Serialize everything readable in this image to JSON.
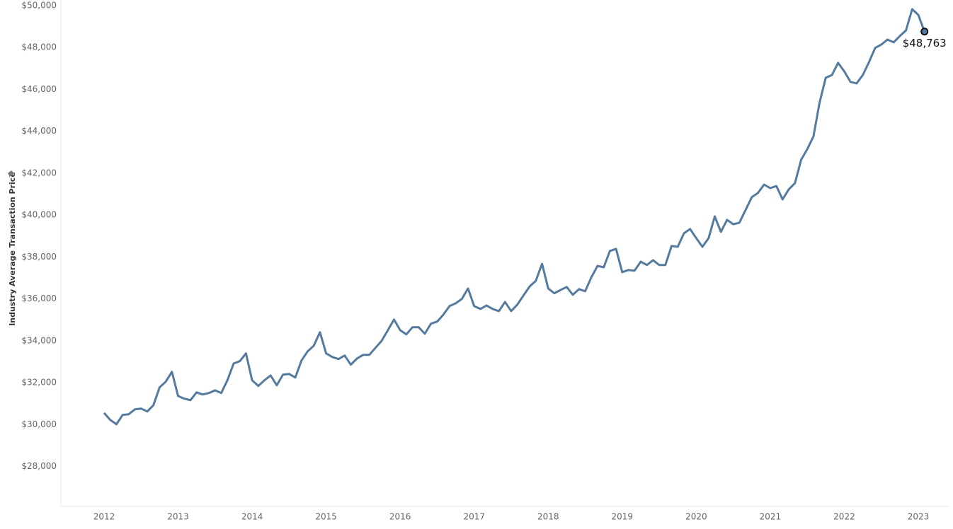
{
  "chart_data": {
    "type": "line",
    "y_label": "Industry Average Transaction Price",
    "categories": [
      "2012",
      null,
      null,
      null,
      null,
      null,
      null,
      null,
      null,
      null,
      null,
      null,
      "2013",
      null,
      null,
      null,
      null,
      null,
      null,
      null,
      null,
      null,
      null,
      null,
      "2014",
      null,
      null,
      null,
      null,
      null,
      null,
      null,
      null,
      null,
      null,
      null,
      "2015",
      null,
      null,
      null,
      null,
      null,
      null,
      null,
      null,
      null,
      null,
      null,
      "2016",
      null,
      null,
      null,
      null,
      null,
      null,
      null,
      null,
      null,
      null,
      null,
      "2017",
      null,
      null,
      null,
      null,
      null,
      null,
      null,
      null,
      null,
      null,
      null,
      "2018",
      null,
      null,
      null,
      null,
      null,
      null,
      null,
      null,
      null,
      null,
      null,
      "2019",
      null,
      null,
      null,
      null,
      null,
      null,
      null,
      null,
      null,
      null,
      null,
      "2020",
      null,
      null,
      null,
      null,
      null,
      null,
      null,
      null,
      null,
      null,
      null,
      "2021",
      null,
      null,
      null,
      null,
      null,
      null,
      null,
      null,
      null,
      null,
      null,
      "2022",
      null,
      null,
      null,
      null,
      null,
      null,
      null,
      null,
      null,
      null,
      null,
      "2023",
      null
    ],
    "series": [
      {
        "color": "#557a9f",
        "values": [
          30560,
          30230,
          30020,
          30460,
          30500,
          30730,
          30770,
          30630,
          30930,
          31780,
          32050,
          32520,
          31370,
          31240,
          31170,
          31540,
          31440,
          31510,
          31640,
          31510,
          32120,
          32920,
          33030,
          33400,
          32120,
          31850,
          32120,
          32350,
          31880,
          32390,
          32420,
          32250,
          33060,
          33500,
          33770,
          34410,
          33400,
          33230,
          33130,
          33300,
          32860,
          33160,
          33330,
          33330,
          33670,
          34000,
          34510,
          35020,
          34510,
          34310,
          34650,
          34650,
          34340,
          34820,
          34920,
          35250,
          35660,
          35790,
          36000,
          36500,
          35660,
          35520,
          35690,
          35520,
          35420,
          35860,
          35420,
          35730,
          36170,
          36600,
          36870,
          37680,
          36500,
          36270,
          36430,
          36570,
          36200,
          36470,
          36370,
          37040,
          37580,
          37510,
          38290,
          38390,
          37280,
          37380,
          37350,
          37780,
          37620,
          37850,
          37620,
          37620,
          38530,
          38490,
          39130,
          39340,
          38900,
          38490,
          38900,
          39940,
          39200,
          39780,
          39570,
          39640,
          40250,
          40860,
          41060,
          41460,
          41290,
          41390,
          40750,
          41230,
          41530,
          42640,
          43150,
          43760,
          45380,
          46560,
          46690,
          47270,
          46860,
          46360,
          46290,
          46690,
          47300,
          47980,
          48140,
          48380,
          48250,
          48550,
          48820,
          49830,
          49560,
          48763
        ],
        "value_labels": [
          null,
          null,
          null,
          null,
          null,
          null,
          null,
          null,
          null,
          null,
          null,
          null,
          null,
          null,
          null,
          null,
          null,
          null,
          null,
          null,
          null,
          null,
          null,
          null,
          null,
          null,
          null,
          null,
          null,
          null,
          null,
          null,
          null,
          null,
          null,
          null,
          null,
          null,
          null,
          null,
          null,
          null,
          null,
          null,
          null,
          null,
          null,
          null,
          null,
          null,
          null,
          null,
          null,
          null,
          null,
          null,
          null,
          null,
          null,
          null,
          null,
          null,
          null,
          null,
          null,
          null,
          null,
          null,
          null,
          null,
          null,
          null,
          null,
          null,
          null,
          null,
          null,
          null,
          null,
          null,
          null,
          null,
          null,
          null,
          null,
          null,
          null,
          null,
          null,
          null,
          null,
          null,
          null,
          null,
          null,
          null,
          null,
          null,
          null,
          null,
          null,
          null,
          null,
          null,
          null,
          null,
          null,
          null,
          null,
          null,
          null,
          null,
          null,
          null,
          null,
          null,
          null,
          null,
          null,
          null,
          null,
          null,
          null,
          null,
          null,
          null,
          null,
          null,
          null,
          null,
          null,
          null,
          null,
          "$48,763"
        ]
      }
    ],
    "ylim": [
      26100,
      50000
    ],
    "yticks": [
      {
        "value": 28000,
        "label": "$28,000"
      },
      {
        "value": 30000,
        "label": "$30,000"
      },
      {
        "value": 32000,
        "label": "$32,000"
      },
      {
        "value": 34000,
        "label": "$34,000"
      },
      {
        "value": 36000,
        "label": "$36,000"
      },
      {
        "value": 38000,
        "label": "$38,000"
      },
      {
        "value": 40000,
        "label": "$40,000"
      },
      {
        "value": 42000,
        "label": "$42,000"
      },
      {
        "value": 44000,
        "label": "$44,000"
      },
      {
        "value": 46000,
        "label": "$46,000"
      },
      {
        "value": 48000,
        "label": "$48,000"
      },
      {
        "value": 50000,
        "label": "$50,000"
      }
    ],
    "grid": false
  }
}
